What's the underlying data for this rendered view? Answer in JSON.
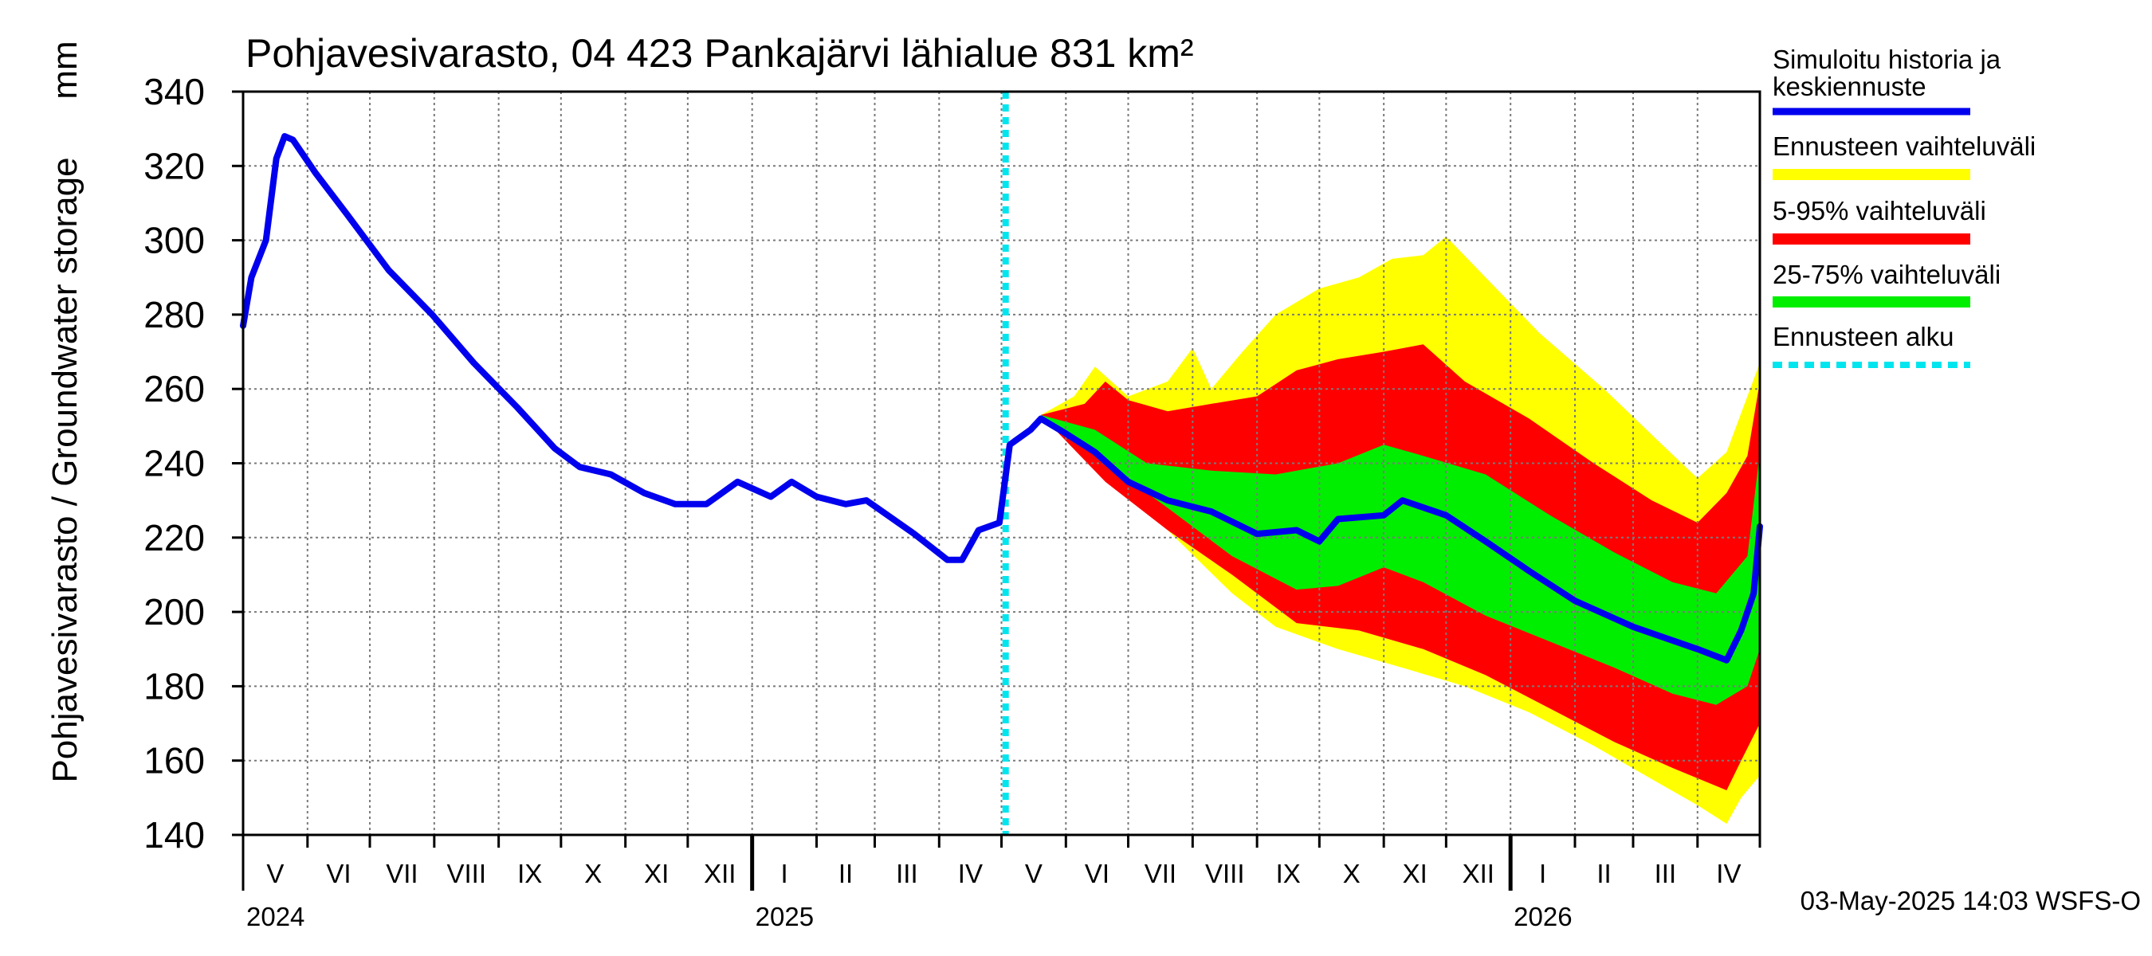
{
  "chart_data": {
    "type": "area",
    "title": "Pohjavesivarasto, 04 423 Pankajärvi lähialue 831 km²",
    "ylabel": "Pohjavesivarasto / Groundwater storage",
    "yunit": "mm",
    "ylim": [
      140,
      340
    ],
    "yticks": [
      140,
      160,
      180,
      200,
      220,
      240,
      260,
      280,
      300,
      320,
      340
    ],
    "xlim": [
      "2024-05-01",
      "2026-05-01"
    ],
    "month_labels": [
      "V",
      "VI",
      "VII",
      "VIII",
      "IX",
      "X",
      "XI",
      "XII",
      "I",
      "II",
      "III",
      "IV",
      "V",
      "VI",
      "VII",
      "VIII",
      "IX",
      "X",
      "XI",
      "XII",
      "I",
      "II",
      "III",
      "IV"
    ],
    "year_labels": [
      {
        "label": "2024",
        "date": "2024-05-01"
      },
      {
        "label": "2025",
        "date": "2025-01-01"
      },
      {
        "label": "2026",
        "date": "2026-01-01"
      }
    ],
    "grid": true,
    "forecast_start": "2025-05-03",
    "footer": "03-May-2025 14:03 WSFS-O",
    "legend": [
      {
        "label": "Simuloitu historia ja keskiennuste",
        "color": "#0000ee",
        "style": "solid"
      },
      {
        "label": "Ennusteen vaihteluväli",
        "color": "#ffff00",
        "style": "solid"
      },
      {
        "label": "5-95% vaihteluväli",
        "color": "#ff0000",
        "style": "solid"
      },
      {
        "label": "25-75% vaihteluväli",
        "color": "#00ee00",
        "style": "solid"
      },
      {
        "label": "Ennusteen alku",
        "color": "#00e5ee",
        "style": "dashed"
      }
    ],
    "series": [
      {
        "name": "Simuloitu historia ja keskiennuste",
        "color": "#0000ee",
        "points": [
          [
            "2024-05-01",
            277
          ],
          [
            "2024-05-05",
            290
          ],
          [
            "2024-05-12",
            300
          ],
          [
            "2024-05-17",
            322
          ],
          [
            "2024-05-21",
            328
          ],
          [
            "2024-05-25",
            327
          ],
          [
            "2024-06-05",
            318
          ],
          [
            "2024-06-20",
            307
          ],
          [
            "2024-07-10",
            292
          ],
          [
            "2024-07-31",
            280
          ],
          [
            "2024-08-20",
            267
          ],
          [
            "2024-09-10",
            255
          ],
          [
            "2024-09-28",
            244
          ],
          [
            "2024-10-10",
            239
          ],
          [
            "2024-10-25",
            237
          ],
          [
            "2024-11-10",
            232
          ],
          [
            "2024-11-25",
            229
          ],
          [
            "2024-12-10",
            229
          ],
          [
            "2024-12-25",
            235
          ],
          [
            "2025-01-10",
            231
          ],
          [
            "2025-01-20",
            235
          ],
          [
            "2025-02-01",
            231
          ],
          [
            "2025-02-15",
            229
          ],
          [
            "2025-02-25",
            230
          ],
          [
            "2025-03-20",
            221
          ],
          [
            "2025-04-05",
            214
          ],
          [
            "2025-04-12",
            214
          ],
          [
            "2025-04-20",
            222
          ],
          [
            "2025-04-30",
            224
          ],
          [
            "2025-05-05",
            245
          ],
          [
            "2025-05-15",
            249
          ],
          [
            "2025-05-20",
            252
          ],
          [
            "2025-06-01",
            248
          ],
          [
            "2025-06-15",
            243
          ],
          [
            "2025-07-01",
            235
          ],
          [
            "2025-07-20",
            230
          ],
          [
            "2025-08-10",
            227
          ],
          [
            "2025-09-01",
            221
          ],
          [
            "2025-09-20",
            222
          ],
          [
            "2025-10-01",
            219
          ],
          [
            "2025-10-10",
            225
          ],
          [
            "2025-11-01",
            226
          ],
          [
            "2025-11-10",
            230
          ],
          [
            "2025-12-01",
            226
          ],
          [
            "2025-12-20",
            219
          ],
          [
            "2026-01-10",
            211
          ],
          [
            "2026-02-01",
            203
          ],
          [
            "2026-03-01",
            196
          ],
          [
            "2026-04-01",
            190
          ],
          [
            "2026-04-15",
            187
          ],
          [
            "2026-04-22",
            195
          ],
          [
            "2026-04-28",
            205
          ],
          [
            "2026-05-01",
            223
          ]
        ]
      },
      {
        "name": "Ennusteen vaihteluväli",
        "color": "#ffff00",
        "upper": [
          [
            "2025-05-20",
            253
          ],
          [
            "2025-06-05",
            258
          ],
          [
            "2025-06-15",
            266
          ],
          [
            "2025-07-01",
            258
          ],
          [
            "2025-07-20",
            262
          ],
          [
            "2025-08-01",
            271
          ],
          [
            "2025-08-10",
            260
          ],
          [
            "2025-08-25",
            270
          ],
          [
            "2025-09-10",
            280
          ],
          [
            "2025-10-01",
            287
          ],
          [
            "2025-10-20",
            290
          ],
          [
            "2025-11-05",
            295
          ],
          [
            "2025-11-20",
            296
          ],
          [
            "2025-12-01",
            301
          ],
          [
            "2025-12-20",
            290
          ],
          [
            "2026-01-15",
            275
          ],
          [
            "2026-02-15",
            260
          ],
          [
            "2026-03-15",
            245
          ],
          [
            "2026-04-01",
            236
          ],
          [
            "2026-04-15",
            243
          ],
          [
            "2026-05-01",
            267
          ]
        ],
        "lower": [
          [
            "2025-05-20",
            253
          ],
          [
            "2025-06-20",
            238
          ],
          [
            "2025-07-20",
            222
          ],
          [
            "2025-08-20",
            205
          ],
          [
            "2025-09-10",
            196
          ],
          [
            "2025-10-10",
            190
          ],
          [
            "2025-11-10",
            185
          ],
          [
            "2025-12-10",
            180
          ],
          [
            "2026-01-10",
            173
          ],
          [
            "2026-02-10",
            164
          ],
          [
            "2026-03-10",
            155
          ],
          [
            "2026-04-01",
            148
          ],
          [
            "2026-04-15",
            143
          ],
          [
            "2026-04-22",
            150
          ],
          [
            "2026-05-01",
            156
          ]
        ]
      },
      {
        "name": "5-95% vaihteluväli",
        "color": "#ff0000",
        "upper": [
          [
            "2025-05-20",
            253
          ],
          [
            "2025-06-10",
            256
          ],
          [
            "2025-06-20",
            262
          ],
          [
            "2025-07-01",
            257
          ],
          [
            "2025-07-20",
            254
          ],
          [
            "2025-08-10",
            256
          ],
          [
            "2025-09-01",
            258
          ],
          [
            "2025-09-20",
            265
          ],
          [
            "2025-10-10",
            268
          ],
          [
            "2025-11-01",
            270
          ],
          [
            "2025-11-20",
            272
          ],
          [
            "2025-12-10",
            262
          ],
          [
            "2026-01-10",
            252
          ],
          [
            "2026-02-10",
            240
          ],
          [
            "2026-03-10",
            230
          ],
          [
            "2026-04-01",
            224
          ],
          [
            "2026-04-15",
            232
          ],
          [
            "2026-04-25",
            242
          ],
          [
            "2026-05-01",
            262
          ]
        ],
        "lower": [
          [
            "2025-05-20",
            253
          ],
          [
            "2025-06-20",
            235
          ],
          [
            "2025-07-20",
            222
          ],
          [
            "2025-08-20",
            210
          ],
          [
            "2025-09-20",
            197
          ],
          [
            "2025-10-20",
            195
          ],
          [
            "2025-11-20",
            190
          ],
          [
            "2025-12-20",
            183
          ],
          [
            "2026-01-20",
            174
          ],
          [
            "2026-02-20",
            165
          ],
          [
            "2026-03-20",
            158
          ],
          [
            "2026-04-15",
            152
          ],
          [
            "2026-04-22",
            160
          ],
          [
            "2026-05-01",
            170
          ]
        ]
      },
      {
        "name": "25-75% vaihteluväli",
        "color": "#00ee00",
        "upper": [
          [
            "2025-05-20",
            253
          ],
          [
            "2025-06-15",
            249
          ],
          [
            "2025-07-10",
            240
          ],
          [
            "2025-08-10",
            238
          ],
          [
            "2025-09-10",
            237
          ],
          [
            "2025-10-10",
            240
          ],
          [
            "2025-11-01",
            245
          ],
          [
            "2025-11-20",
            242
          ],
          [
            "2025-12-20",
            237
          ],
          [
            "2026-01-20",
            226
          ],
          [
            "2026-02-20",
            216
          ],
          [
            "2026-03-20",
            208
          ],
          [
            "2026-04-10",
            205
          ],
          [
            "2026-04-25",
            215
          ],
          [
            "2026-05-01",
            243
          ]
        ],
        "lower": [
          [
            "2025-05-20",
            253
          ],
          [
            "2025-06-20",
            240
          ],
          [
            "2025-07-20",
            228
          ],
          [
            "2025-08-20",
            215
          ],
          [
            "2025-09-20",
            206
          ],
          [
            "2025-10-10",
            207
          ],
          [
            "2025-11-01",
            212
          ],
          [
            "2025-11-20",
            208
          ],
          [
            "2025-12-20",
            199
          ],
          [
            "2026-01-20",
            192
          ],
          [
            "2026-02-20",
            185
          ],
          [
            "2026-03-20",
            178
          ],
          [
            "2026-04-10",
            175
          ],
          [
            "2026-04-25",
            180
          ],
          [
            "2026-05-01",
            190
          ]
        ]
      }
    ]
  }
}
